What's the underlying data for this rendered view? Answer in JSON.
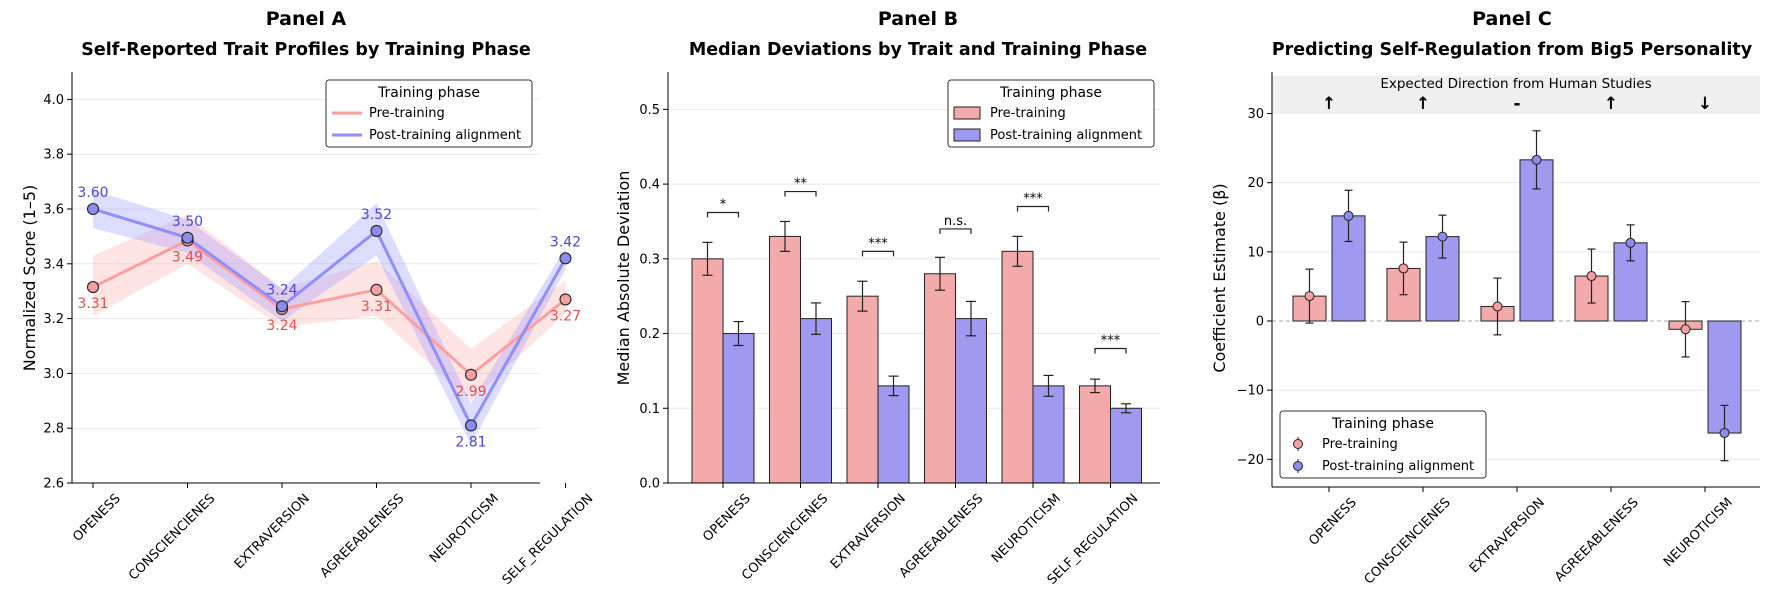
{
  "colors": {
    "pre_line": "#ff9f9f",
    "post_line": "#8f8fff",
    "pre_fill": "#f2aaaa",
    "post_fill": "#9f99f0",
    "pre_point": "#f4a0a0",
    "post_point": "#8c8cf0",
    "pre_text": "#e05050",
    "post_text": "#4a4acc",
    "edge": "#222222",
    "grid": "#e8e8e8",
    "band": "#f0f0f0"
  },
  "chart_data": [
    {
      "type": "line",
      "panel_label": "Panel A",
      "title": "Self-Reported Trait Profiles by Training Phase",
      "xlabel": "",
      "ylabel": "Normalized Score (1–5)",
      "ylim": [
        2.6,
        4.1
      ],
      "yticks": [
        "2.6",
        "2.8",
        "3.0",
        "3.2",
        "3.4",
        "3.6",
        "3.8",
        "4.0"
      ],
      "grid": true,
      "categories": [
        "OPENESS",
        "CONSCIENCIENES",
        "EXTRAVERSION",
        "AGREEABLENESS",
        "NEUROTICISM",
        "SELF_REGULATION"
      ],
      "legend": {
        "title": "Training phase",
        "position": "top-right"
      },
      "series": [
        {
          "name": "Pre-training",
          "values": [
            3.315,
            3.485,
            3.235,
            3.305,
            2.995,
            3.27
          ],
          "ci_low": [
            3.21,
            3.4,
            3.17,
            3.21,
            2.9,
            3.22
          ],
          "ci_high": [
            3.43,
            3.58,
            3.31,
            3.41,
            3.09,
            3.34
          ],
          "labels": [
            "3.31",
            "3.49",
            "3.24",
            "3.31",
            "2.99",
            "3.27"
          ],
          "label_at": [
            null,
            null,
            null,
            null,
            null,
            null
          ]
        },
        {
          "name": "Post-training alignment",
          "values": [
            3.6,
            3.495,
            3.245,
            3.52,
            2.81,
            3.42
          ],
          "ci_low": [
            3.53,
            3.44,
            3.19,
            3.43,
            2.74,
            3.38
          ],
          "ci_high": [
            3.67,
            3.56,
            3.31,
            3.62,
            2.89,
            3.46
          ],
          "labels": [
            "3.60",
            "3.50",
            "3.24",
            "3.52",
            "2.81",
            "3.42"
          ],
          "label_at": [
            null,
            null,
            null,
            null,
            null,
            null
          ]
        }
      ]
    },
    {
      "type": "bar",
      "panel_label": "Panel B",
      "title": "Median Deviations by Trait and Training Phase",
      "xlabel": "",
      "ylabel": "Median Absolute Deviation",
      "ylim": [
        0,
        0.55
      ],
      "yticks": [
        "0.0",
        "0.1",
        "0.2",
        "0.3",
        "0.4",
        "0.5"
      ],
      "grid": true,
      "categories": [
        "OPENESS",
        "CONSCIENCIENES",
        "EXTRAVERSION",
        "AGREEABLENESS",
        "NEUROTICISM",
        "SELF_REGULATION"
      ],
      "legend": {
        "title": "Training phase",
        "position": "top-right"
      },
      "series": [
        {
          "name": "Pre-training",
          "values": [
            0.3,
            0.33,
            0.25,
            0.28,
            0.31,
            0.13
          ],
          "err": [
            0.022,
            0.02,
            0.02,
            0.022,
            0.02,
            0.009
          ]
        },
        {
          "name": "Post-training alignment",
          "values": [
            0.2,
            0.22,
            0.13,
            0.22,
            0.13,
            0.1
          ],
          "err": [
            0.016,
            0.021,
            0.013,
            0.023,
            0.014,
            0.006
          ]
        }
      ],
      "significance": [
        {
          "label": "*",
          "y": 0.362
        },
        {
          "label": "**",
          "y": 0.39
        },
        {
          "label": "***",
          "y": 0.31
        },
        {
          "label": "n.s.",
          "y": 0.34
        },
        {
          "label": "***",
          "y": 0.37
        },
        {
          "label": "***",
          "y": 0.18
        }
      ]
    },
    {
      "type": "bar",
      "panel_label": "Panel C",
      "title": "Predicting Self-Regulation from Big5 Personality",
      "xlabel": "",
      "ylabel": "Coefficient Estimate (β)",
      "ylim": [
        -24,
        36
      ],
      "yticks": [
        "−20",
        "−10",
        "0",
        "10",
        "20",
        "30"
      ],
      "ytick_values": [
        -20,
        -10,
        0,
        10,
        20,
        30
      ],
      "grid": true,
      "categories": [
        "OPENESS",
        "CONSCIENCIENES",
        "EXTRAVERSION",
        "AGREEABLENESS",
        "NEUROTICISM"
      ],
      "legend": {
        "title": "Training phase",
        "position": "lower-left"
      },
      "expected_band": {
        "title": "Expected Direction from Human Studies",
        "arrows": [
          "↑",
          "↑",
          "-",
          "↑",
          "↓"
        ]
      },
      "series": [
        {
          "name": "Pre-training",
          "values": [
            3.6,
            7.6,
            2.1,
            6.5,
            -1.2
          ],
          "err": [
            3.9,
            3.8,
            4.1,
            3.9,
            4.0
          ]
        },
        {
          "name": "Post-training alignment",
          "values": [
            15.2,
            12.2,
            23.3,
            11.3,
            -16.2
          ],
          "err": [
            3.7,
            3.1,
            4.2,
            2.6,
            4.0
          ]
        }
      ]
    }
  ]
}
